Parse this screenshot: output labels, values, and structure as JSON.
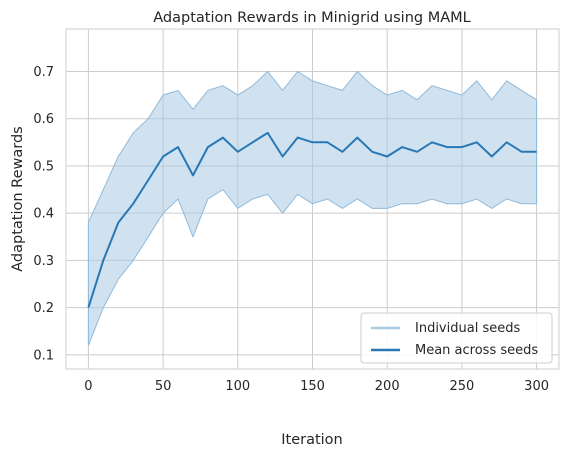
{
  "chart_data": {
    "type": "line",
    "title": "Adaptation Rewards in Minigrid using MAML",
    "xlabel": "Iteration",
    "ylabel": "Adaptation Rewards",
    "xlim": [
      -15,
      315
    ],
    "ylim": [
      0.07,
      0.79
    ],
    "xticks": [
      0,
      50,
      100,
      150,
      200,
      250,
      300
    ],
    "yticks": [
      0.1,
      0.2,
      0.3,
      0.4,
      0.5,
      0.6,
      0.7
    ],
    "ytick_labels": [
      "0.1",
      "0.2",
      "0.3",
      "0.4",
      "0.5",
      "0.6",
      "0.7"
    ],
    "grid": true,
    "legend_position": "lower-right",
    "colors": {
      "mean": "#2878b5",
      "band": "#a9cbe3",
      "band_line": "#8fbadb",
      "grid": "#cccccc",
      "spine": "#cccccc"
    },
    "x": [
      0,
      10,
      20,
      30,
      40,
      50,
      60,
      70,
      80,
      90,
      100,
      110,
      120,
      130,
      140,
      150,
      160,
      170,
      180,
      190,
      200,
      210,
      220,
      230,
      240,
      250,
      260,
      270,
      280,
      290,
      300
    ],
    "series": [
      {
        "name": "Mean across seeds",
        "values": [
          0.2,
          0.3,
          0.38,
          0.42,
          0.47,
          0.52,
          0.54,
          0.48,
          0.54,
          0.56,
          0.53,
          0.55,
          0.57,
          0.52,
          0.56,
          0.55,
          0.55,
          0.53,
          0.56,
          0.53,
          0.52,
          0.54,
          0.53,
          0.55,
          0.54,
          0.54,
          0.55,
          0.52,
          0.55,
          0.53,
          0.53
        ]
      },
      {
        "name": "Individual seeds",
        "upper": [
          0.38,
          0.45,
          0.52,
          0.57,
          0.6,
          0.65,
          0.66,
          0.62,
          0.66,
          0.67,
          0.65,
          0.67,
          0.7,
          0.66,
          0.7,
          0.68,
          0.67,
          0.66,
          0.7,
          0.67,
          0.65,
          0.66,
          0.64,
          0.67,
          0.66,
          0.65,
          0.68,
          0.64,
          0.68,
          0.66,
          0.64
        ],
        "lower": [
          0.12,
          0.2,
          0.26,
          0.3,
          0.35,
          0.4,
          0.43,
          0.35,
          0.43,
          0.45,
          0.41,
          0.43,
          0.44,
          0.4,
          0.44,
          0.42,
          0.43,
          0.41,
          0.43,
          0.41,
          0.41,
          0.42,
          0.42,
          0.43,
          0.42,
          0.42,
          0.43,
          0.41,
          0.43,
          0.42,
          0.42
        ]
      }
    ]
  }
}
